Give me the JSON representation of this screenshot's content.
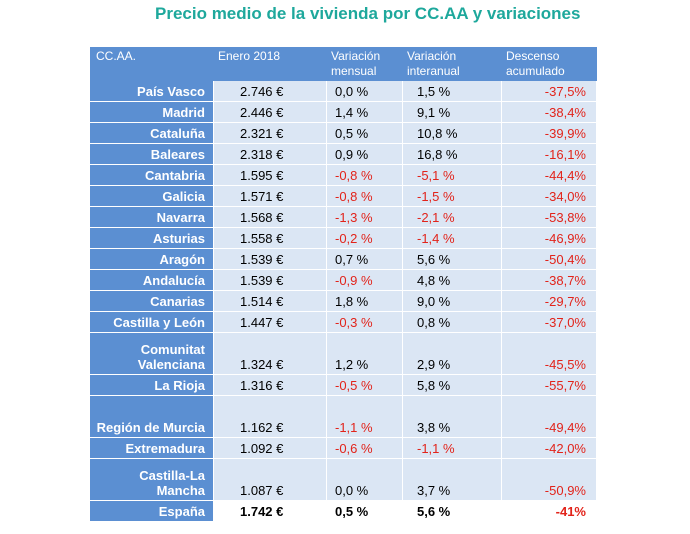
{
  "title": "Precio medio de la vivienda por CC.AA y variaciones",
  "headers": {
    "region": "CC.AA.",
    "enero": "Enero 2018",
    "mensual": "Variación mensual",
    "interanual": "Variación interanual",
    "descenso": "Descenso acumulado"
  },
  "rows": [
    {
      "name": "País Vasco",
      "enero": "2.746 €",
      "mensual": "0,0 %",
      "interanual": "1,5 %",
      "descenso": "-37,5%"
    },
    {
      "name": "Madrid",
      "enero": "2.446 €",
      "mensual": "1,4 %",
      "interanual": "9,1 %",
      "descenso": "-38,4%"
    },
    {
      "name": "Cataluña",
      "enero": "2.321 €",
      "mensual": "0,5 %",
      "interanual": "10,8 %",
      "descenso": "-39,9%"
    },
    {
      "name": "Baleares",
      "enero": "2.318 €",
      "mensual": "0,9 %",
      "interanual": "16,8 %",
      "descenso": "-16,1%"
    },
    {
      "name": "Cantabria",
      "enero": "1.595 €",
      "mensual": "-0,8 %",
      "interanual": "-5,1 %",
      "descenso": "-44,4%"
    },
    {
      "name": "Galicia",
      "enero": "1.571 €",
      "mensual": "-0,8 %",
      "interanual": "-1,5 %",
      "descenso": "-34,0%"
    },
    {
      "name": "Navarra",
      "enero": "1.568 €",
      "mensual": "-1,3 %",
      "interanual": "-2,1 %",
      "descenso": "-53,8%"
    },
    {
      "name": "Asturias",
      "enero": "1.558 €",
      "mensual": "-0,2 %",
      "interanual": "-1,4 %",
      "descenso": "-46,9%"
    },
    {
      "name": "Aragón",
      "enero": "1.539 €",
      "mensual": "0,7 %",
      "interanual": "5,6 %",
      "descenso": "-50,4%"
    },
    {
      "name": "Andalucía",
      "enero": "1.539 €",
      "mensual": "-0,9 %",
      "interanual": "4,8 %",
      "descenso": "-38,7%"
    },
    {
      "name": "Canarias",
      "enero": "1.514 €",
      "mensual": "1,8 %",
      "interanual": "9,0 %",
      "descenso": "-29,7%"
    },
    {
      "name": "Castilla y León",
      "enero": "1.447 €",
      "mensual": "-0,3 %",
      "interanual": "0,8 %",
      "descenso": "-37,0%"
    },
    {
      "name": "Comunitat Valenciana",
      "enero": "1.324 €",
      "mensual": "1,2 %",
      "interanual": "2,9 %",
      "descenso": "-45,5%"
    },
    {
      "name": "La Rioja",
      "enero": "1.316 €",
      "mensual": "-0,5 %",
      "interanual": "5,8 %",
      "descenso": "-55,7%"
    },
    {
      "name": "Región de Murcia",
      "enero": "1.162 €",
      "mensual": "-1,1 %",
      "interanual": "3,8 %",
      "descenso": "-49,4%"
    },
    {
      "name": "Extremadura",
      "enero": "1.092 €",
      "mensual": "-0,6 %",
      "interanual": "-1,1 %",
      "descenso": "-42,0%"
    },
    {
      "name": "Castilla-La Mancha",
      "enero": "1.087 €",
      "mensual": "0,0 %",
      "interanual": "3,7 %",
      "descenso": "-50,9%"
    },
    {
      "name": "España",
      "enero": "1.742 €",
      "mensual": "0,5 %",
      "interanual": "5,6 %",
      "descenso": "-41%"
    }
  ],
  "colors": {
    "title": "#1ea89c",
    "header": "#5b8fd2",
    "cell": "#dbe6f4",
    "negative": "#e2231a"
  }
}
